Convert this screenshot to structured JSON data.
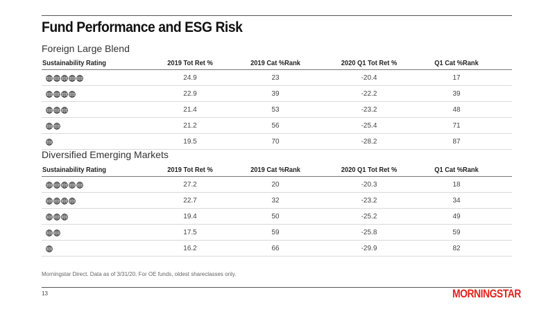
{
  "title": "Fund Performance and ESG Risk",
  "headers": [
    "Sustainability Rating",
    "2019 Tot Ret %",
    "2019 Cat %Rank",
    "2020 Q1 Tot Ret %",
    "Q1 Cat %Rank"
  ],
  "sections": [
    {
      "name": "Foreign Large Blend",
      "rows": [
        {
          "globes": 5,
          "tot_ret_2019": "24.9",
          "cat_rank_2019": "23",
          "tot_ret_q1_2020": "-20.4",
          "cat_rank_q1": "17"
        },
        {
          "globes": 4,
          "tot_ret_2019": "22.9",
          "cat_rank_2019": "39",
          "tot_ret_q1_2020": "-22.2",
          "cat_rank_q1": "39"
        },
        {
          "globes": 3,
          "tot_ret_2019": "21.4",
          "cat_rank_2019": "53",
          "tot_ret_q1_2020": "-23.2",
          "cat_rank_q1": "48"
        },
        {
          "globes": 2,
          "tot_ret_2019": "21.2",
          "cat_rank_2019": "56",
          "tot_ret_q1_2020": "-25.4",
          "cat_rank_q1": "71"
        },
        {
          "globes": 1,
          "tot_ret_2019": "19.5",
          "cat_rank_2019": "70",
          "tot_ret_q1_2020": "-28.2",
          "cat_rank_q1": "87"
        }
      ]
    },
    {
      "name": "Diversified Emerging Markets",
      "rows": [
        {
          "globes": 5,
          "tot_ret_2019": "27.2",
          "cat_rank_2019": "20",
          "tot_ret_q1_2020": "-20.3",
          "cat_rank_q1": "18"
        },
        {
          "globes": 4,
          "tot_ret_2019": "22.7",
          "cat_rank_2019": "32",
          "tot_ret_q1_2020": "-23.2",
          "cat_rank_q1": "34"
        },
        {
          "globes": 3,
          "tot_ret_2019": "19.4",
          "cat_rank_2019": "50",
          "tot_ret_q1_2020": "-25.2",
          "cat_rank_q1": "49"
        },
        {
          "globes": 2,
          "tot_ret_2019": "17.5",
          "cat_rank_2019": "59",
          "tot_ret_q1_2020": "-25.8",
          "cat_rank_q1": "59"
        },
        {
          "globes": 1,
          "tot_ret_2019": "16.2",
          "cat_rank_2019": "66",
          "tot_ret_q1_2020": "-29.9",
          "cat_rank_q1": "82"
        }
      ]
    }
  ],
  "footnote": "Morningstar Direct.  Data as of 3/31/20.  For OE funds, oldest shareclasses only.",
  "page_number": "13",
  "logo_text": "MORNINGSTAR",
  "colors": {
    "brand": "#e3231b",
    "globe": "#333333"
  },
  "icons": {
    "rating": "globe-icon"
  }
}
